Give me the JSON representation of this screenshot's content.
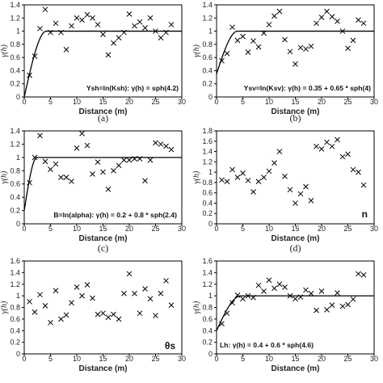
{
  "chart_data": [
    {
      "type": "scatter",
      "caption": "(a)",
      "annotation": "Ysh=ln(Ksh): γ(h) = sph(4.2)",
      "xlabel": "Distance (m)",
      "ylabel": "γ(h)",
      "xlim": [
        0,
        30
      ],
      "ylim": [
        0,
        1.4
      ],
      "xticks": [
        0,
        5,
        10,
        15,
        20,
        25,
        30
      ],
      "yticks": [
        0,
        0.2,
        0.4,
        0.6,
        0.8,
        1,
        1.2,
        1.4
      ],
      "points": {
        "x": [
          1,
          2,
          3,
          4,
          5,
          6,
          7,
          8,
          9,
          10,
          11,
          12,
          13,
          14,
          15,
          16,
          17,
          18,
          19,
          20,
          21,
          22,
          23,
          24,
          25,
          26,
          27,
          28
        ],
        "y": [
          0.33,
          0.62,
          1.04,
          1.33,
          0.98,
          1.12,
          0.98,
          0.72,
          1.08,
          1.2,
          1.17,
          1.25,
          1.2,
          1.1,
          0.95,
          0.64,
          0.82,
          0.9,
          0.98,
          1.26,
          1.08,
          1.14,
          1.05,
          1.2,
          1.0,
          0.9,
          0.98,
          1.1
        ]
      },
      "model": {
        "nugget": 0,
        "sill": 1,
        "range": 4.2
      }
    },
    {
      "type": "scatter",
      "caption": "(b)",
      "annotation": "Ysv=ln(Ksv): γ(h) = 0.35 + 0.65 * sph(4)",
      "xlabel": "Distance (m)",
      "ylabel": "γ(h)",
      "xlim": [
        0,
        30
      ],
      "ylim": [
        0,
        1.4
      ],
      "xticks": [
        0,
        5,
        10,
        15,
        20,
        25,
        30
      ],
      "yticks": [
        0,
        0.2,
        0.4,
        0.6,
        0.8,
        1,
        1.2,
        1.4
      ],
      "points": {
        "x": [
          1,
          2,
          3,
          4,
          5,
          6,
          7,
          8,
          9,
          10,
          11,
          12,
          13,
          14,
          15,
          16,
          17,
          18,
          19,
          20,
          21,
          22,
          23,
          24,
          25,
          26,
          27,
          28
        ],
        "y": [
          0.55,
          0.66,
          1.06,
          0.86,
          0.92,
          0.68,
          0.85,
          0.76,
          0.97,
          1.1,
          1.23,
          1.3,
          0.87,
          0.69,
          0.5,
          0.75,
          0.73,
          0.77,
          1.12,
          1.21,
          1.3,
          1.22,
          1.15,
          1.0,
          0.74,
          0.86,
          1.17,
          1.12
        ]
      },
      "model": {
        "nugget": 0.35,
        "sill": 1,
        "range": 4
      }
    },
    {
      "type": "scatter",
      "caption": "(c)",
      "annotation": "B=ln(alpha): γ(h) = 0.2 + 0.8 * sph(2.4)",
      "xlabel": "Distance (m)",
      "ylabel": "γ(h)",
      "xlim": [
        0,
        30
      ],
      "ylim": [
        0,
        1.4
      ],
      "xticks": [
        0,
        5,
        10,
        15,
        20,
        25,
        30
      ],
      "yticks": [
        0,
        0.2,
        0.4,
        0.6,
        0.8,
        1,
        1.2,
        1.4
      ],
      "points": {
        "x": [
          1,
          2,
          3,
          4,
          5,
          6,
          7,
          8,
          9,
          10,
          11,
          12,
          13,
          14,
          15,
          16,
          17,
          18,
          19,
          20,
          21,
          22,
          23,
          24,
          25,
          26,
          27,
          28
        ],
        "y": [
          0.62,
          1.0,
          1.33,
          0.94,
          0.82,
          0.9,
          0.7,
          0.7,
          0.64,
          1.14,
          1.36,
          1.18,
          0.75,
          0.93,
          0.78,
          0.52,
          0.8,
          0.88,
          0.96,
          0.96,
          0.98,
          0.98,
          0.65,
          0.96,
          1.22,
          1.2,
          1.17,
          1.12
        ]
      },
      "model": {
        "nugget": 0.2,
        "sill": 1,
        "range": 2.4
      }
    },
    {
      "type": "scatter",
      "caption": "(d)",
      "annotation": "n",
      "xlabel": "Distance (m)",
      "ylabel": "γ(h)",
      "xlim": [
        0,
        30
      ],
      "ylim": [
        0,
        1.8
      ],
      "xticks": [
        0,
        5,
        10,
        15,
        20,
        25,
        30
      ],
      "yticks": [
        0,
        0.2,
        0.4,
        0.6,
        0.8,
        1,
        1.2,
        1.4,
        1.6,
        1.8
      ],
      "points": {
        "x": [
          1,
          2,
          3,
          4,
          5,
          6,
          7,
          8,
          9,
          10,
          11,
          12,
          13,
          14,
          15,
          16,
          17,
          18,
          19,
          20,
          21,
          22,
          23,
          24,
          25,
          26,
          27,
          28
        ],
        "y": [
          0.85,
          0.82,
          1.05,
          0.9,
          0.98,
          0.84,
          0.62,
          0.82,
          0.9,
          1.02,
          1.18,
          1.4,
          0.92,
          0.66,
          0.4,
          0.58,
          0.72,
          0.45,
          1.5,
          1.45,
          1.58,
          1.5,
          1.63,
          1.3,
          1.35,
          1.05,
          1.0,
          0.75
        ]
      }
    },
    {
      "type": "scatter",
      "caption": "",
      "annotation": "θs",
      "xlabel": "Distance (m)",
      "ylabel": "γ(h)",
      "xlim": [
        0,
        30
      ],
      "ylim": [
        0,
        1.6
      ],
      "xticks": [
        0,
        5,
        10,
        15,
        20,
        25,
        30
      ],
      "yticks": [
        0,
        0.2,
        0.4,
        0.6,
        0.8,
        1,
        1.2,
        1.4,
        1.6
      ],
      "points": {
        "x": [
          1,
          2,
          3,
          4,
          5,
          6,
          7,
          8,
          9,
          10,
          11,
          12,
          13,
          14,
          15,
          16,
          17,
          18,
          19,
          20,
          21,
          22,
          23,
          24,
          25,
          26,
          27,
          28
        ],
        "y": [
          0.9,
          0.72,
          1.02,
          0.83,
          0.54,
          1.09,
          0.6,
          0.67,
          0.88,
          1.15,
          1.0,
          1.19,
          0.96,
          0.68,
          0.7,
          0.63,
          0.68,
          0.6,
          1.04,
          1.38,
          1.04,
          0.7,
          1.12,
          0.95,
          0.66,
          1.04,
          1.26,
          0.84
        ]
      }
    },
    {
      "type": "scatter",
      "caption": "",
      "annotation": "Lh: γ(h) = 0.4 + 0.6 * sph(4.6)",
      "xlabel": "Distance (m)",
      "ylabel": "γ(h)",
      "xlim": [
        0,
        30
      ],
      "ylim": [
        0,
        1.6
      ],
      "xticks": [
        0,
        5,
        10,
        15,
        20,
        25,
        30
      ],
      "yticks": [
        0,
        0.2,
        0.4,
        0.6,
        0.8,
        1,
        1.2,
        1.4,
        1.6
      ],
      "points": {
        "x": [
          1,
          2,
          3,
          4,
          5,
          6,
          7,
          8,
          9,
          10,
          11,
          12,
          13,
          14,
          15,
          16,
          17,
          18,
          19,
          20,
          21,
          22,
          23,
          24,
          25,
          26,
          27,
          28
        ],
        "y": [
          0.52,
          0.7,
          0.88,
          1.01,
          0.95,
          1.0,
          0.97,
          1.18,
          1.08,
          1.27,
          1.13,
          1.2,
          1.15,
          1.0,
          0.95,
          0.98,
          1.1,
          1.04,
          0.75,
          1.08,
          0.76,
          0.84,
          1.05,
          0.82,
          0.85,
          0.94,
          1.38,
          1.36
        ]
      },
      "model": {
        "nugget": 0.4,
        "sill": 1,
        "range": 4.6
      }
    }
  ]
}
